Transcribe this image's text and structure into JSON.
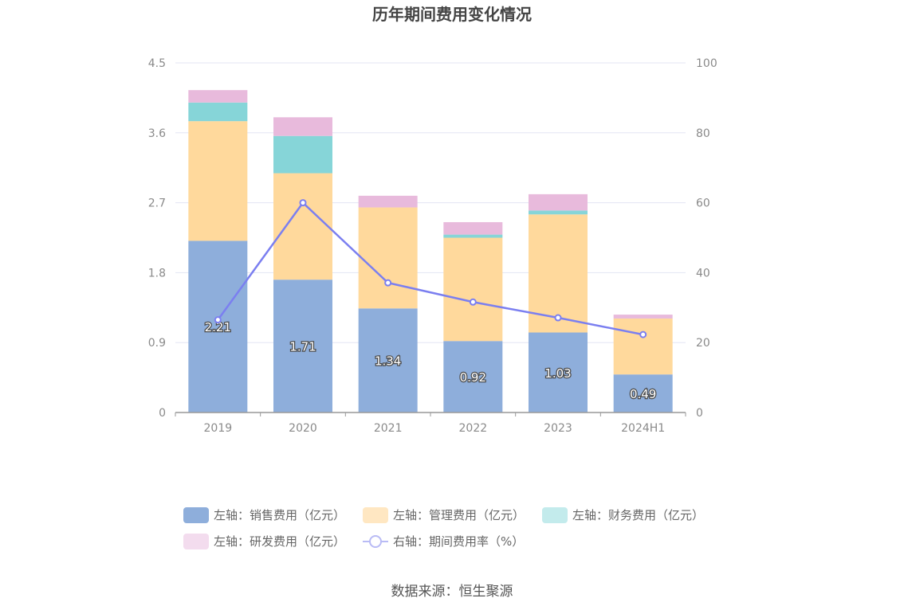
{
  "chart_data": {
    "type": "bar",
    "title": "历年期间费用变化情况",
    "categories": [
      "2019",
      "2020",
      "2021",
      "2022",
      "2023",
      "2024H1"
    ],
    "y_left": {
      "ticks": [
        "0",
        "0.9",
        "1.8",
        "2.7",
        "3.6",
        "4.5"
      ],
      "min": 0,
      "max": 4.5
    },
    "y_right": {
      "ticks": [
        "0",
        "20",
        "40",
        "60",
        "80",
        "100"
      ],
      "min": 0,
      "max": 100
    },
    "grid": true,
    "legend_position": "bottom",
    "series": [
      {
        "name": "左轴：销售费用（亿元）",
        "type": "bar",
        "axis": "left",
        "color": "#8eaedb",
        "values": [
          2.21,
          1.71,
          1.34,
          0.92,
          1.03,
          0.49
        ],
        "labels": [
          "2.21",
          "1.71",
          "1.34",
          "0.92",
          "1.03",
          "0.49"
        ]
      },
      {
        "name": "左轴：管理费用（亿元）",
        "type": "bar",
        "axis": "left",
        "color": "#ffd99c",
        "values": [
          1.54,
          1.37,
          1.3,
          1.33,
          1.52,
          0.72
        ]
      },
      {
        "name": "左轴：财务费用（亿元）",
        "type": "bar",
        "axis": "left",
        "color": "#86d5d8",
        "values": [
          0.24,
          0.48,
          0.0,
          0.04,
          0.05,
          0.0
        ]
      },
      {
        "name": "左轴：研发费用（亿元）",
        "type": "bar",
        "axis": "left",
        "color": "#e8badc",
        "values": [
          0.16,
          0.24,
          0.15,
          0.16,
          0.21,
          0.05
        ]
      },
      {
        "name": "右轴：期间费用率（%）",
        "type": "line",
        "axis": "right",
        "color": "#7b7ff0",
        "values": [
          26.5,
          60.0,
          37.1,
          31.6,
          27.1,
          22.3
        ]
      }
    ]
  },
  "source": "数据来源：恒生聚源"
}
